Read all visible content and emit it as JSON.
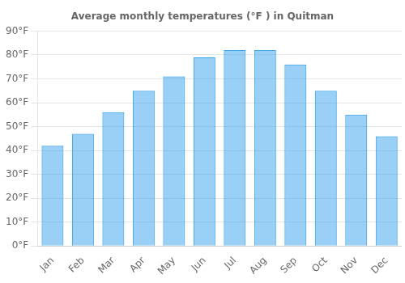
{
  "chart_data": {
    "type": "bar",
    "title": "Average monthly temperatures (°F ) in Quitman",
    "categories": [
      "Jan",
      "Feb",
      "Mar",
      "Apr",
      "May",
      "Jun",
      "Jul",
      "Aug",
      "Sep",
      "Oct",
      "Nov",
      "Dec"
    ],
    "values": [
      42,
      47,
      56,
      65,
      71,
      79,
      82,
      82,
      76,
      65,
      55,
      46
    ],
    "ylim": [
      0,
      90
    ],
    "yticks": [
      {
        "value": 0,
        "label": "0°F"
      },
      {
        "value": 10,
        "label": "10°F"
      },
      {
        "value": 20,
        "label": "20°F"
      },
      {
        "value": 30,
        "label": "30°F"
      },
      {
        "value": 40,
        "label": "40°F"
      },
      {
        "value": 50,
        "label": "50°F"
      },
      {
        "value": 60,
        "label": "60°F"
      },
      {
        "value": 70,
        "label": "70°F"
      },
      {
        "value": 80,
        "label": "80°F"
      },
      {
        "value": 90,
        "label": "90°F"
      }
    ],
    "grid": true
  }
}
